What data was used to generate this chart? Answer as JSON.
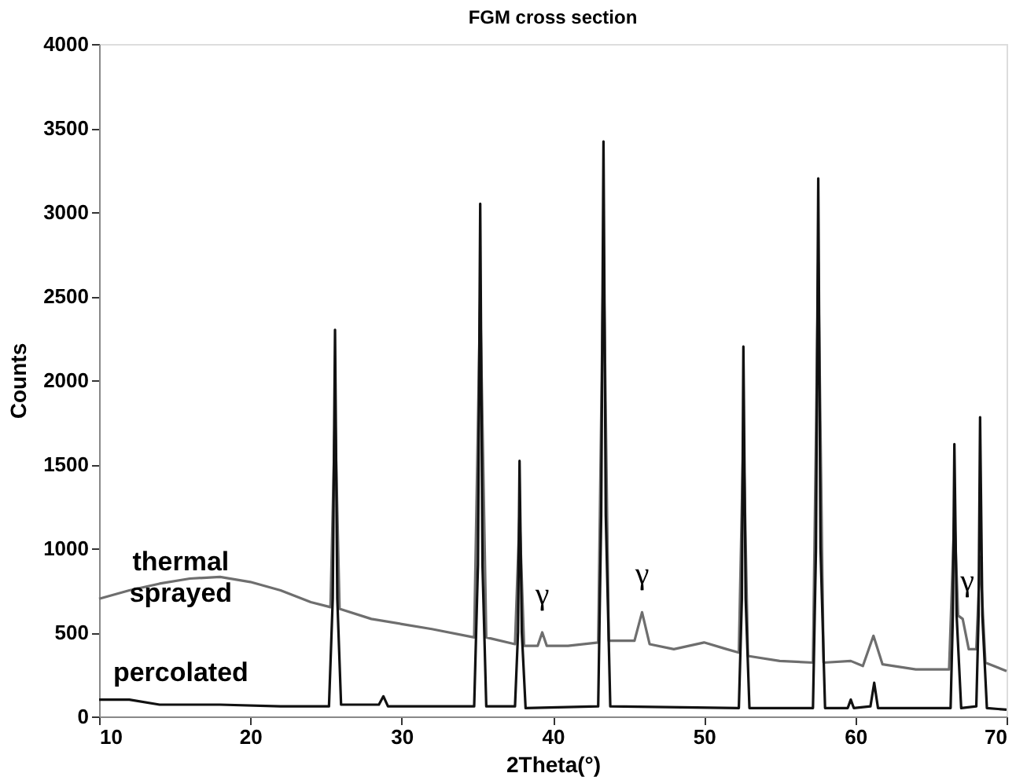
{
  "chart_data": {
    "type": "line",
    "title": "FGM cross section",
    "xlabel": "2Theta(°)",
    "ylabel": "Counts",
    "xlim": [
      10,
      70
    ],
    "xticks": [
      10,
      20,
      30,
      40,
      50,
      60,
      70
    ],
    "ylim": [
      0,
      4000
    ],
    "yticks": [
      0,
      500,
      1000,
      1500,
      2000,
      2500,
      3000,
      3500,
      4000
    ],
    "grid": false,
    "legend": false,
    "marker": "none",
    "line_style": "solid",
    "series": [
      {
        "name": "thermal sprayed",
        "color": "#6e6e6e",
        "x": [
          10,
          12,
          14,
          16,
          18,
          20,
          22,
          24,
          25.3,
          25.6,
          25.9,
          28,
          30,
          32,
          34.8,
          35.2,
          35.6,
          37.5,
          37.8,
          38.1,
          39.0,
          39.3,
          39.6,
          41,
          43.0,
          43.35,
          43.7,
          45.4,
          45.9,
          46.4,
          48,
          50,
          51.5,
          52.3,
          52.6,
          52.9,
          55,
          57.2,
          57.55,
          57.9,
          59.7,
          60.5,
          61.2,
          61.8,
          64,
          66.2,
          66.55,
          66.8,
          67.1,
          67.5,
          68.0,
          68.25,
          68.6,
          70
        ],
        "values": [
          700,
          750,
          790,
          820,
          830,
          800,
          750,
          680,
          650,
          1800,
          640,
          580,
          550,
          520,
          470,
          2500,
          470,
          430,
          1200,
          420,
          420,
          500,
          420,
          420,
          440,
          2800,
          450,
          450,
          620,
          430,
          400,
          440,
          400,
          380,
          1700,
          360,
          330,
          320,
          2700,
          320,
          330,
          300,
          480,
          310,
          280,
          280,
          1200,
          600,
          580,
          400,
          400,
          950,
          320,
          270
        ]
      },
      {
        "name": "percolated",
        "color": "#111111",
        "x": [
          10,
          12,
          14,
          18,
          22,
          25.2,
          25.45,
          25.6,
          25.75,
          26.0,
          28.5,
          28.8,
          29.1,
          34.8,
          35.05,
          35.2,
          35.35,
          35.6,
          37.5,
          37.7,
          37.8,
          37.95,
          38.2,
          43.0,
          43.2,
          43.35,
          43.5,
          43.8,
          52.3,
          52.5,
          52.6,
          52.75,
          53.0,
          57.2,
          57.4,
          57.55,
          57.7,
          58.0,
          59.5,
          59.7,
          59.9,
          61.0,
          61.25,
          61.5,
          66.3,
          66.45,
          66.55,
          66.7,
          67.0,
          68.0,
          68.15,
          68.25,
          68.4,
          68.7,
          70
        ],
        "values": [
          100,
          100,
          70,
          70,
          60,
          60,
          700,
          2300,
          700,
          70,
          70,
          120,
          60,
          60,
          900,
          3050,
          900,
          60,
          60,
          500,
          1520,
          500,
          50,
          60,
          1200,
          3420,
          1200,
          60,
          50,
          700,
          2200,
          700,
          50,
          50,
          1000,
          3200,
          1000,
          50,
          50,
          100,
          50,
          60,
          200,
          50,
          50,
          600,
          1620,
          600,
          50,
          60,
          600,
          1780,
          600,
          50,
          40
        ]
      }
    ],
    "annotations": [
      {
        "text": "γ",
        "x": 39.3,
        "y": 500
      },
      {
        "text": "γ",
        "x": 45.9,
        "y": 620
      },
      {
        "text": "γ",
        "x": 67.4,
        "y": 580
      }
    ]
  }
}
